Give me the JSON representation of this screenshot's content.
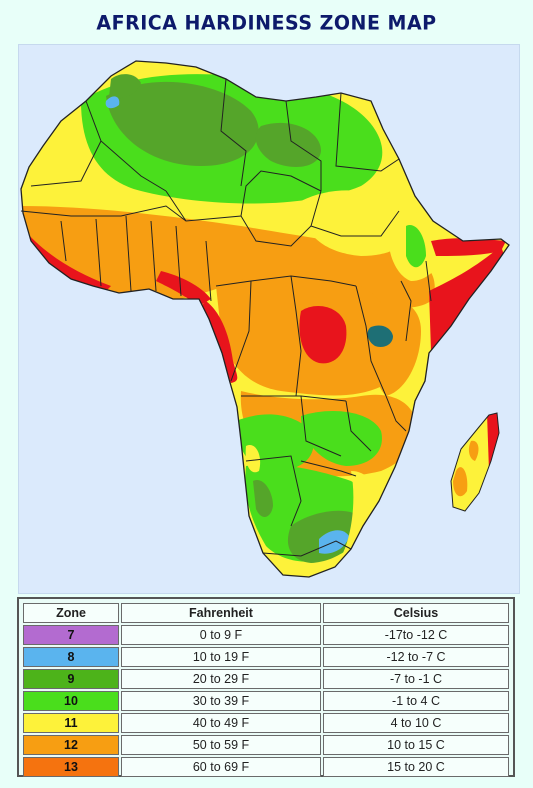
{
  "title": "AFRICA HARDINESS ZONE MAP",
  "colors": {
    "zone_7": "#b36bd0",
    "zone_8": "#5ab4ee",
    "zone_9": "#4db31a",
    "zone_10": "#4ade1c",
    "zone_11": "#fdf23a",
    "zone_12": "#f79e12",
    "zone_13": "#f5730f",
    "zone_dark_green": "#55a52a",
    "zone_red": "#e8141c",
    "zone_teal": "#1e6f75",
    "ocean": "#dbeafc"
  },
  "legend": {
    "headers": [
      "Zone",
      "Fahrenheit",
      "Celsius"
    ],
    "rows": [
      {
        "zone": "7",
        "fahrenheit": "0 to 9 F",
        "celsius": "-17to -12 C",
        "color": "#b36bd0"
      },
      {
        "zone": "8",
        "fahrenheit": "10 to 19 F",
        "celsius": "-12 to -7 C",
        "color": "#5ab4ee"
      },
      {
        "zone": "9",
        "fahrenheit": "20 to 29 F",
        "celsius": "-7 to -1 C",
        "color": "#4db31a"
      },
      {
        "zone": "10",
        "fahrenheit": "30 to 39 F",
        "celsius": "-1 to 4 C",
        "color": "#4ade1c"
      },
      {
        "zone": "11",
        "fahrenheit": "40 to 49 F",
        "celsius": "4 to 10 C",
        "color": "#fdf23a"
      },
      {
        "zone": "12",
        "fahrenheit": "50 to 59 F",
        "celsius": "10 to 15 C",
        "color": "#f79e12"
      },
      {
        "zone": "13",
        "fahrenheit": "60 to 69 F",
        "celsius": "15 to 20 C",
        "color": "#f5730f"
      }
    ]
  }
}
